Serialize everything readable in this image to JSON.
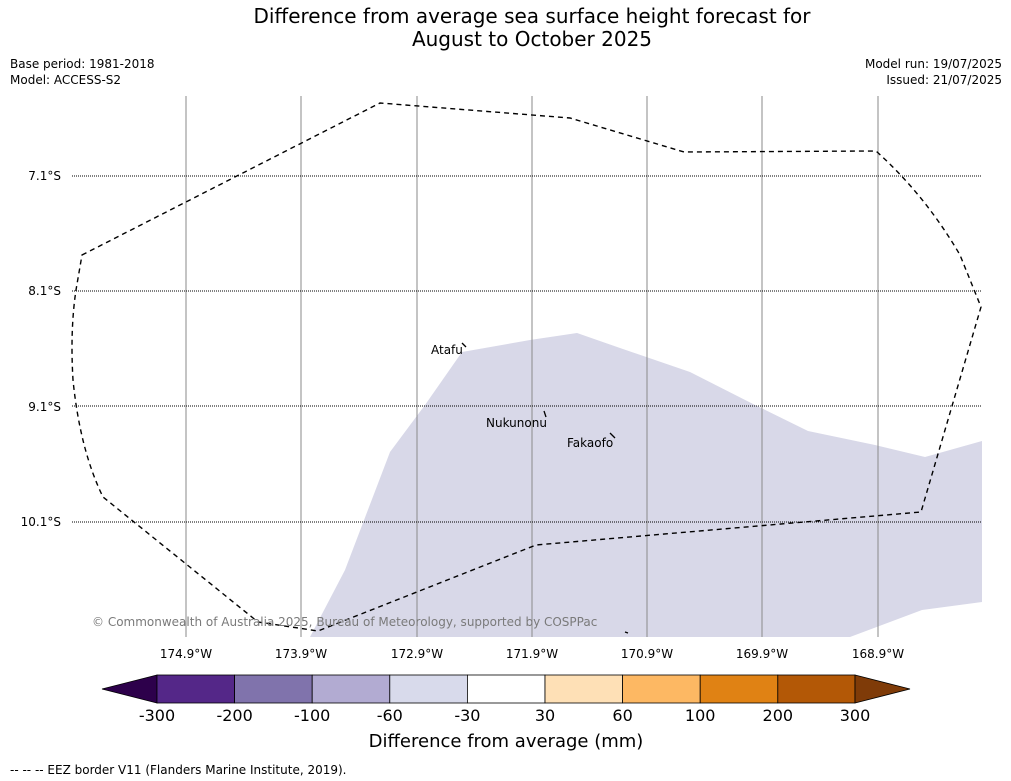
{
  "title_line1": "Difference from average sea surface height forecast for",
  "title_line2": "August to October 2025",
  "meta": {
    "base_period": "Base period: 1981-2018",
    "model": "Model: ACCESS-S2",
    "model_run": "Model run: 19/07/2025",
    "issued": "Issued: 21/07/2025"
  },
  "map": {
    "longitude_labels": [
      "174.9°W",
      "173.9°W",
      "172.9°W",
      "171.9°W",
      "170.9°W",
      "169.9°W",
      "168.9°W"
    ],
    "latitude_labels": [
      "7.1°S",
      "8.1°S",
      "9.1°S",
      "10.1°S"
    ],
    "places": [
      "Atafu",
      "Nukunonu",
      "Fakaofo"
    ],
    "copyright": "© Commonwealth of Australia 2025, Bureau of Meteorology, supported by COSPPac",
    "shaded_category_color": "#d8d8e8"
  },
  "colorbar": {
    "title": "Difference from average (mm)",
    "ticks": [
      "-300",
      "-200",
      "-100",
      "-60",
      "-30",
      "30",
      "60",
      "100",
      "200",
      "300"
    ],
    "colors": [
      "#2d004b",
      "#542788",
      "#8073ac",
      "#b2abd2",
      "#d8daeb",
      "#ffffff",
      "#fee0b6",
      "#fdb863",
      "#e08214",
      "#b35806",
      "#7f3b08"
    ]
  },
  "footnote": "--  --  -- EEZ border V11 (Flanders Marine Institute, 2019)."
}
